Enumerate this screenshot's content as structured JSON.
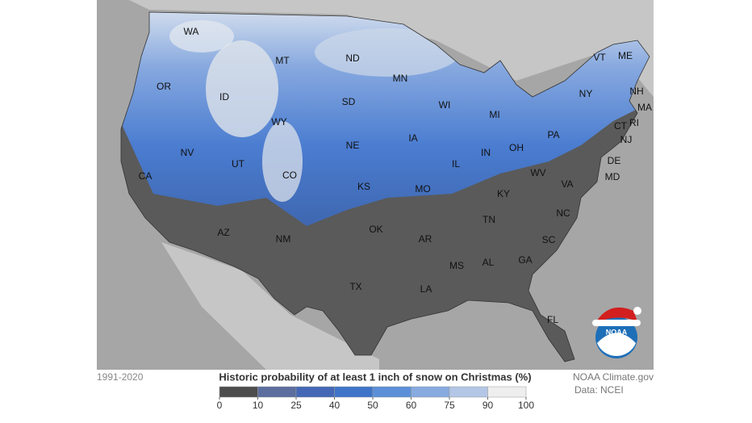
{
  "period": "1991-2020",
  "legend": {
    "title": "Historic probability of at least 1 inch of snow on Christmas (%)",
    "bins": [
      0,
      10,
      25,
      40,
      50,
      60,
      75,
      90,
      100
    ],
    "colors": [
      "#4d4d4d",
      "#5b6e9e",
      "#4468b5",
      "#3f74c9",
      "#5b8fd8",
      "#87aadf",
      "#b3c6e6",
      "#eeeeee"
    ]
  },
  "credits": [
    "NOAA Climate.gov",
    "Data: NCEI"
  ],
  "logo_text": "NOAA",
  "states": [
    "WA",
    "MT",
    "ND",
    "OR",
    "ID",
    "MN",
    "SD",
    "WI",
    "MI",
    "WY",
    "NE",
    "IA",
    "NV",
    "UT",
    "CO",
    "IL",
    "IN",
    "OH",
    "PA",
    "NY",
    "VT",
    "ME",
    "NH",
    "MA",
    "CT",
    "RI",
    "NJ",
    "DE",
    "MD",
    "VA",
    "WV",
    "KY",
    "KS",
    "MO",
    "CA",
    "AZ",
    "NM",
    "OK",
    "AR",
    "TN",
    "NC",
    "SC",
    "GA",
    "AL",
    "MS",
    "LA",
    "TX",
    "FL"
  ]
}
